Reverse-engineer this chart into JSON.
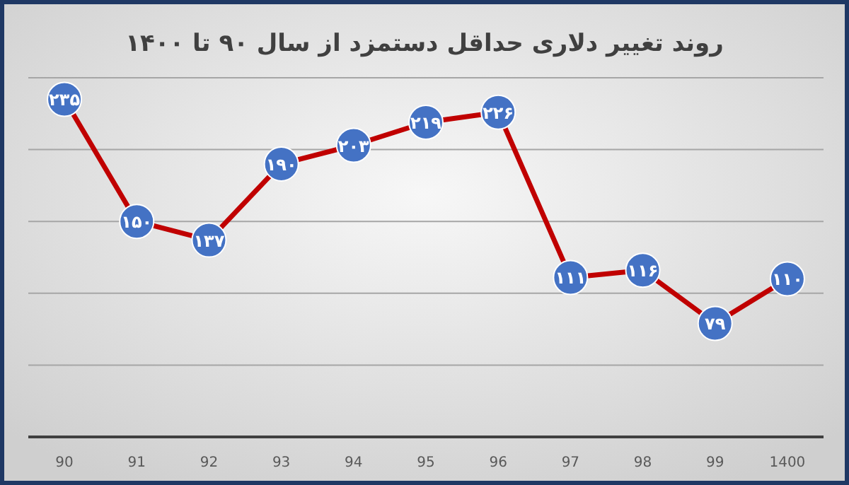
{
  "chart_data": {
    "type": "line",
    "title": "روند تغییر دلاری حداقل دستمزد از سال ۹۰ تا ۱۴۰۰",
    "categories": [
      "90",
      "91",
      "92",
      "93",
      "94",
      "95",
      "96",
      "97",
      "98",
      "99",
      "1400"
    ],
    "series": [
      {
        "color": "#c00000",
        "colors": [
          "#4472c4",
          "#4472c4",
          "#4472c4",
          "#4472c4",
          "#4472c4",
          "#4472c4",
          "#4472c4",
          "#4472c4",
          "#4472c4",
          "#4472c4",
          "#4472c4"
        ],
        "values": [
          235,
          150,
          137,
          190,
          203,
          219,
          226,
          111,
          116,
          79,
          110
        ],
        "value_labels": [
          "۲۳۵",
          "۱۵۰",
          "۱۳۷",
          "۱۹۰",
          "۲۰۳",
          "۲۱۹",
          "۲۲۶",
          "۱۱۱",
          "۱۱۶",
          "۷۹",
          "۱۱۰"
        ]
      }
    ],
    "ylim": [
      0,
      250
    ],
    "yticks": [
      {
        "value": 0,
        "label": null
      },
      {
        "value": 50,
        "label": null
      },
      {
        "value": 100,
        "label": null
      },
      {
        "value": 150,
        "label": null
      },
      {
        "value": 200,
        "label": null
      },
      {
        "value": 250,
        "label": null
      }
    ],
    "grid": "y",
    "tick_labels": "x",
    "marker": "circle",
    "line_style": "solid"
  }
}
